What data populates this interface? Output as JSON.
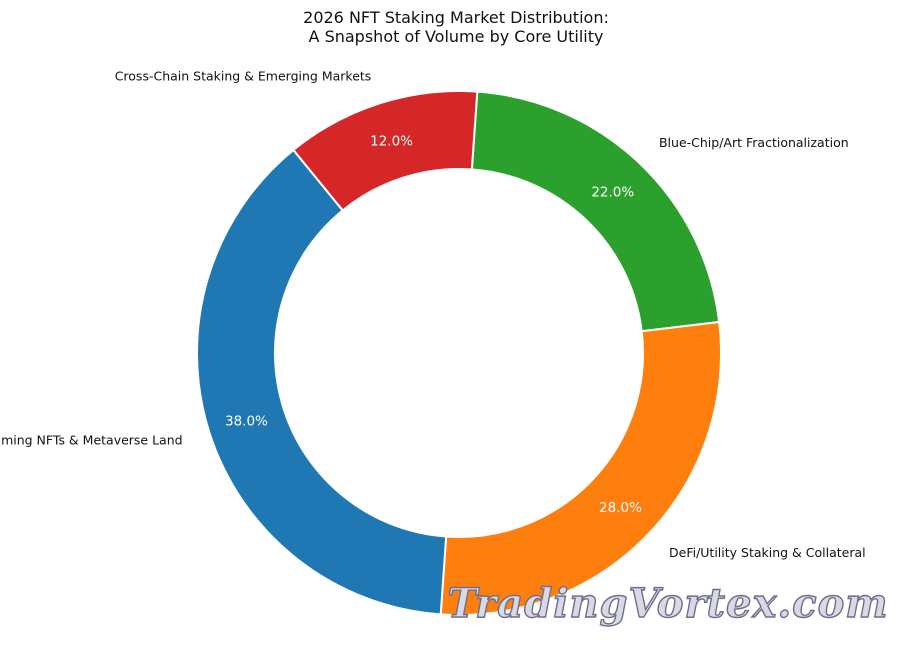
{
  "chart_data": {
    "type": "pie",
    "style": "donut",
    "title": [
      "2026 NFT Staking Market Distribution:",
      "A Snapshot of Volume by Core Utility"
    ],
    "slices": [
      {
        "label": "Blue-Chip/Art Fractionalization",
        "value": 22.0,
        "pct_label": "22.0%",
        "color": "#2ca02c"
      },
      {
        "label": "DeFi/Utility Staking & Collateral",
        "value": 28.0,
        "pct_label": "28.0%",
        "color": "#ff7f0e"
      },
      {
        "label": "Gaming NFTs & Metaverse Land",
        "value": 38.0,
        "pct_label": "38.0%",
        "color": "#1f77b4"
      },
      {
        "label": "Cross-Chain Staking & Emerging Markets",
        "value": 12.0,
        "pct_label": "12.0%",
        "color": "#d62728"
      }
    ],
    "start_angle_deg": 86,
    "direction": "clockwise",
    "legend": "none"
  },
  "watermark": "TradingVortex.com"
}
